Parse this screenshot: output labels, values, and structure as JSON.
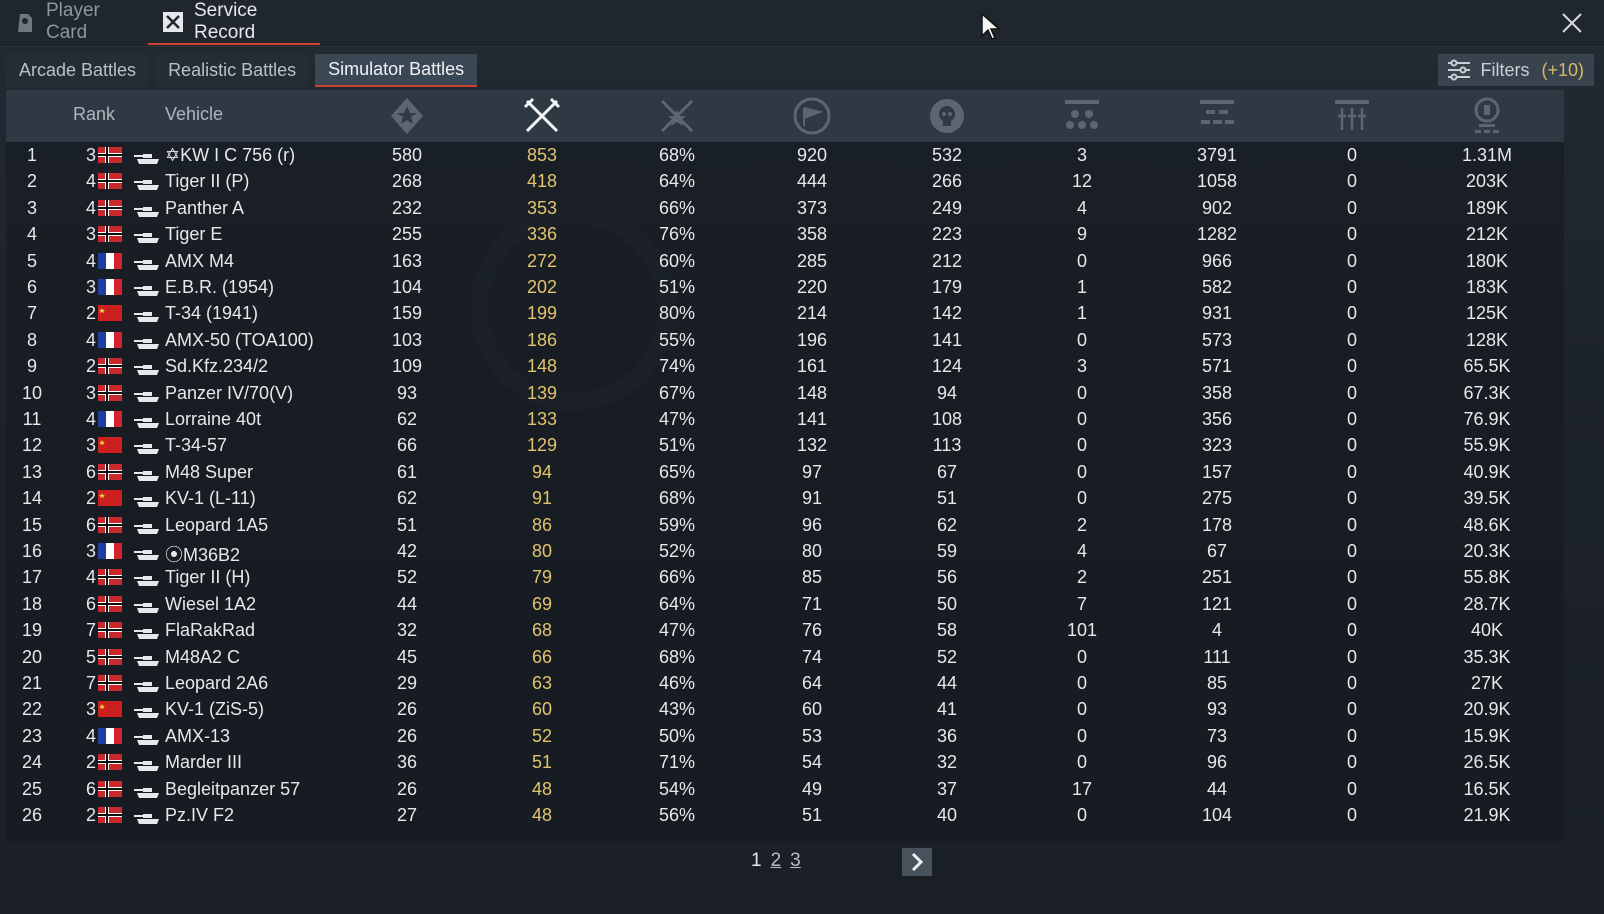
{
  "top_tabs": [
    {
      "label": "Player Card",
      "icon": "player-card-icon"
    },
    {
      "label": "Service Record",
      "icon": "service-record-icon"
    }
  ],
  "sub_tabs": [
    "Arcade Battles",
    "Realistic Battles",
    "Simulator Battles"
  ],
  "active_sub_tab": "Simulator Battles",
  "filters": {
    "label": "Filters",
    "count": "(+10)"
  },
  "headers": {
    "rank": "Rank",
    "vehicle": "Vehicle"
  },
  "stat_columns": [
    "victories-icon",
    "battles-icon",
    "win-rate-icon",
    "respawns-icon",
    "deaths-icon",
    "air-kills-icon",
    "ground-kills-icon",
    "naval-kills-icon",
    "experience-icon"
  ],
  "colors": {
    "gold": "#e2c36e",
    "accent": "#c9412f"
  },
  "rows": [
    {
      "n": "1",
      "rank": "3",
      "nation": "germany",
      "name": "✡KW I C 756 (r)",
      "s": [
        "580",
        "853",
        "68%",
        "920",
        "532",
        "3",
        "3791",
        "0",
        "1.31M"
      ]
    },
    {
      "n": "2",
      "rank": "4",
      "nation": "germany",
      "name": "Tiger II (P)",
      "s": [
        "268",
        "418",
        "64%",
        "444",
        "266",
        "12",
        "1058",
        "0",
        "203K"
      ]
    },
    {
      "n": "3",
      "rank": "4",
      "nation": "germany",
      "name": "Panther A",
      "s": [
        "232",
        "353",
        "66%",
        "373",
        "249",
        "4",
        "902",
        "0",
        "189K"
      ]
    },
    {
      "n": "4",
      "rank": "3",
      "nation": "germany",
      "name": "Tiger E",
      "s": [
        "255",
        "336",
        "76%",
        "358",
        "223",
        "9",
        "1282",
        "0",
        "212K"
      ]
    },
    {
      "n": "5",
      "rank": "4",
      "nation": "france",
      "name": "AMX M4",
      "s": [
        "163",
        "272",
        "60%",
        "285",
        "212",
        "0",
        "966",
        "0",
        "180K"
      ]
    },
    {
      "n": "6",
      "rank": "3",
      "nation": "france",
      "name": "E.B.R. (1954)",
      "s": [
        "104",
        "202",
        "51%",
        "220",
        "179",
        "1",
        "582",
        "0",
        "183K"
      ]
    },
    {
      "n": "7",
      "rank": "2",
      "nation": "ussr",
      "name": "T-34 (1941)",
      "s": [
        "159",
        "199",
        "80%",
        "214",
        "142",
        "1",
        "931",
        "0",
        "125K"
      ]
    },
    {
      "n": "8",
      "rank": "4",
      "nation": "france",
      "name": "AMX-50 (TOA100)",
      "s": [
        "103",
        "186",
        "55%",
        "196",
        "141",
        "0",
        "573",
        "0",
        "128K"
      ]
    },
    {
      "n": "9",
      "rank": "2",
      "nation": "germany",
      "name": "Sd.Kfz.234/2",
      "s": [
        "109",
        "148",
        "74%",
        "161",
        "124",
        "3",
        "571",
        "0",
        "65.5K"
      ]
    },
    {
      "n": "10",
      "rank": "3",
      "nation": "germany",
      "name": "Panzer IV/70(V)",
      "s": [
        "93",
        "139",
        "67%",
        "148",
        "94",
        "0",
        "358",
        "0",
        "67.3K"
      ]
    },
    {
      "n": "11",
      "rank": "4",
      "nation": "france",
      "name": "Lorraine 40t",
      "s": [
        "62",
        "133",
        "47%",
        "141",
        "108",
        "0",
        "356",
        "0",
        "76.9K"
      ]
    },
    {
      "n": "12",
      "rank": "3",
      "nation": "ussr",
      "name": "T-34-57",
      "s": [
        "66",
        "129",
        "51%",
        "132",
        "113",
        "0",
        "323",
        "0",
        "55.9K"
      ]
    },
    {
      "n": "13",
      "rank": "6",
      "nation": "germany",
      "name": "M48 Super",
      "s": [
        "61",
        "94",
        "65%",
        "97",
        "67",
        "0",
        "157",
        "0",
        "40.9K"
      ]
    },
    {
      "n": "14",
      "rank": "2",
      "nation": "ussr",
      "name": "KV-1 (L-11)",
      "s": [
        "62",
        "91",
        "68%",
        "91",
        "51",
        "0",
        "275",
        "0",
        "39.5K"
      ]
    },
    {
      "n": "15",
      "rank": "6",
      "nation": "germany",
      "name": "Leopard 1A5",
      "s": [
        "51",
        "86",
        "59%",
        "96",
        "62",
        "2",
        "178",
        "0",
        "48.6K"
      ]
    },
    {
      "n": "16",
      "rank": "3",
      "nation": "france",
      "name": "⦿M36B2",
      "s": [
        "42",
        "80",
        "52%",
        "80",
        "59",
        "4",
        "67",
        "0",
        "20.3K"
      ]
    },
    {
      "n": "17",
      "rank": "4",
      "nation": "germany",
      "name": "Tiger II (H)",
      "s": [
        "52",
        "79",
        "66%",
        "85",
        "56",
        "2",
        "251",
        "0",
        "55.8K"
      ]
    },
    {
      "n": "18",
      "rank": "6",
      "nation": "germany",
      "name": "Wiesel 1A2",
      "s": [
        "44",
        "69",
        "64%",
        "71",
        "50",
        "7",
        "121",
        "0",
        "28.7K"
      ]
    },
    {
      "n": "19",
      "rank": "7",
      "nation": "germany",
      "name": "FlaRakRad",
      "s": [
        "32",
        "68",
        "47%",
        "76",
        "58",
        "101",
        "4",
        "0",
        "40K"
      ]
    },
    {
      "n": "20",
      "rank": "5",
      "nation": "germany",
      "name": "M48A2 C",
      "s": [
        "45",
        "66",
        "68%",
        "74",
        "52",
        "0",
        "111",
        "0",
        "35.3K"
      ]
    },
    {
      "n": "21",
      "rank": "7",
      "nation": "germany",
      "name": "Leopard 2A6",
      "s": [
        "29",
        "63",
        "46%",
        "64",
        "44",
        "0",
        "85",
        "0",
        "27K"
      ]
    },
    {
      "n": "22",
      "rank": "3",
      "nation": "ussr",
      "name": "KV-1 (ZiS-5)",
      "s": [
        "26",
        "60",
        "43%",
        "60",
        "41",
        "0",
        "93",
        "0",
        "20.9K"
      ]
    },
    {
      "n": "23",
      "rank": "4",
      "nation": "france",
      "name": "AMX-13",
      "s": [
        "26",
        "52",
        "50%",
        "53",
        "36",
        "0",
        "73",
        "0",
        "15.9K"
      ]
    },
    {
      "n": "24",
      "rank": "2",
      "nation": "germany",
      "name": "Marder III",
      "s": [
        "36",
        "51",
        "71%",
        "54",
        "32",
        "0",
        "96",
        "0",
        "26.5K"
      ]
    },
    {
      "n": "25",
      "rank": "6",
      "nation": "germany",
      "name": "Begleitpanzer 57",
      "s": [
        "26",
        "48",
        "54%",
        "49",
        "37",
        "17",
        "44",
        "0",
        "16.5K"
      ]
    },
    {
      "n": "26",
      "rank": "2",
      "nation": "germany",
      "name": "Pz.IV F2",
      "s": [
        "27",
        "48",
        "56%",
        "51",
        "40",
        "0",
        "104",
        "0",
        "21.9K"
      ]
    }
  ],
  "pagination": {
    "current": "1",
    "pages": [
      "2",
      "3"
    ]
  }
}
